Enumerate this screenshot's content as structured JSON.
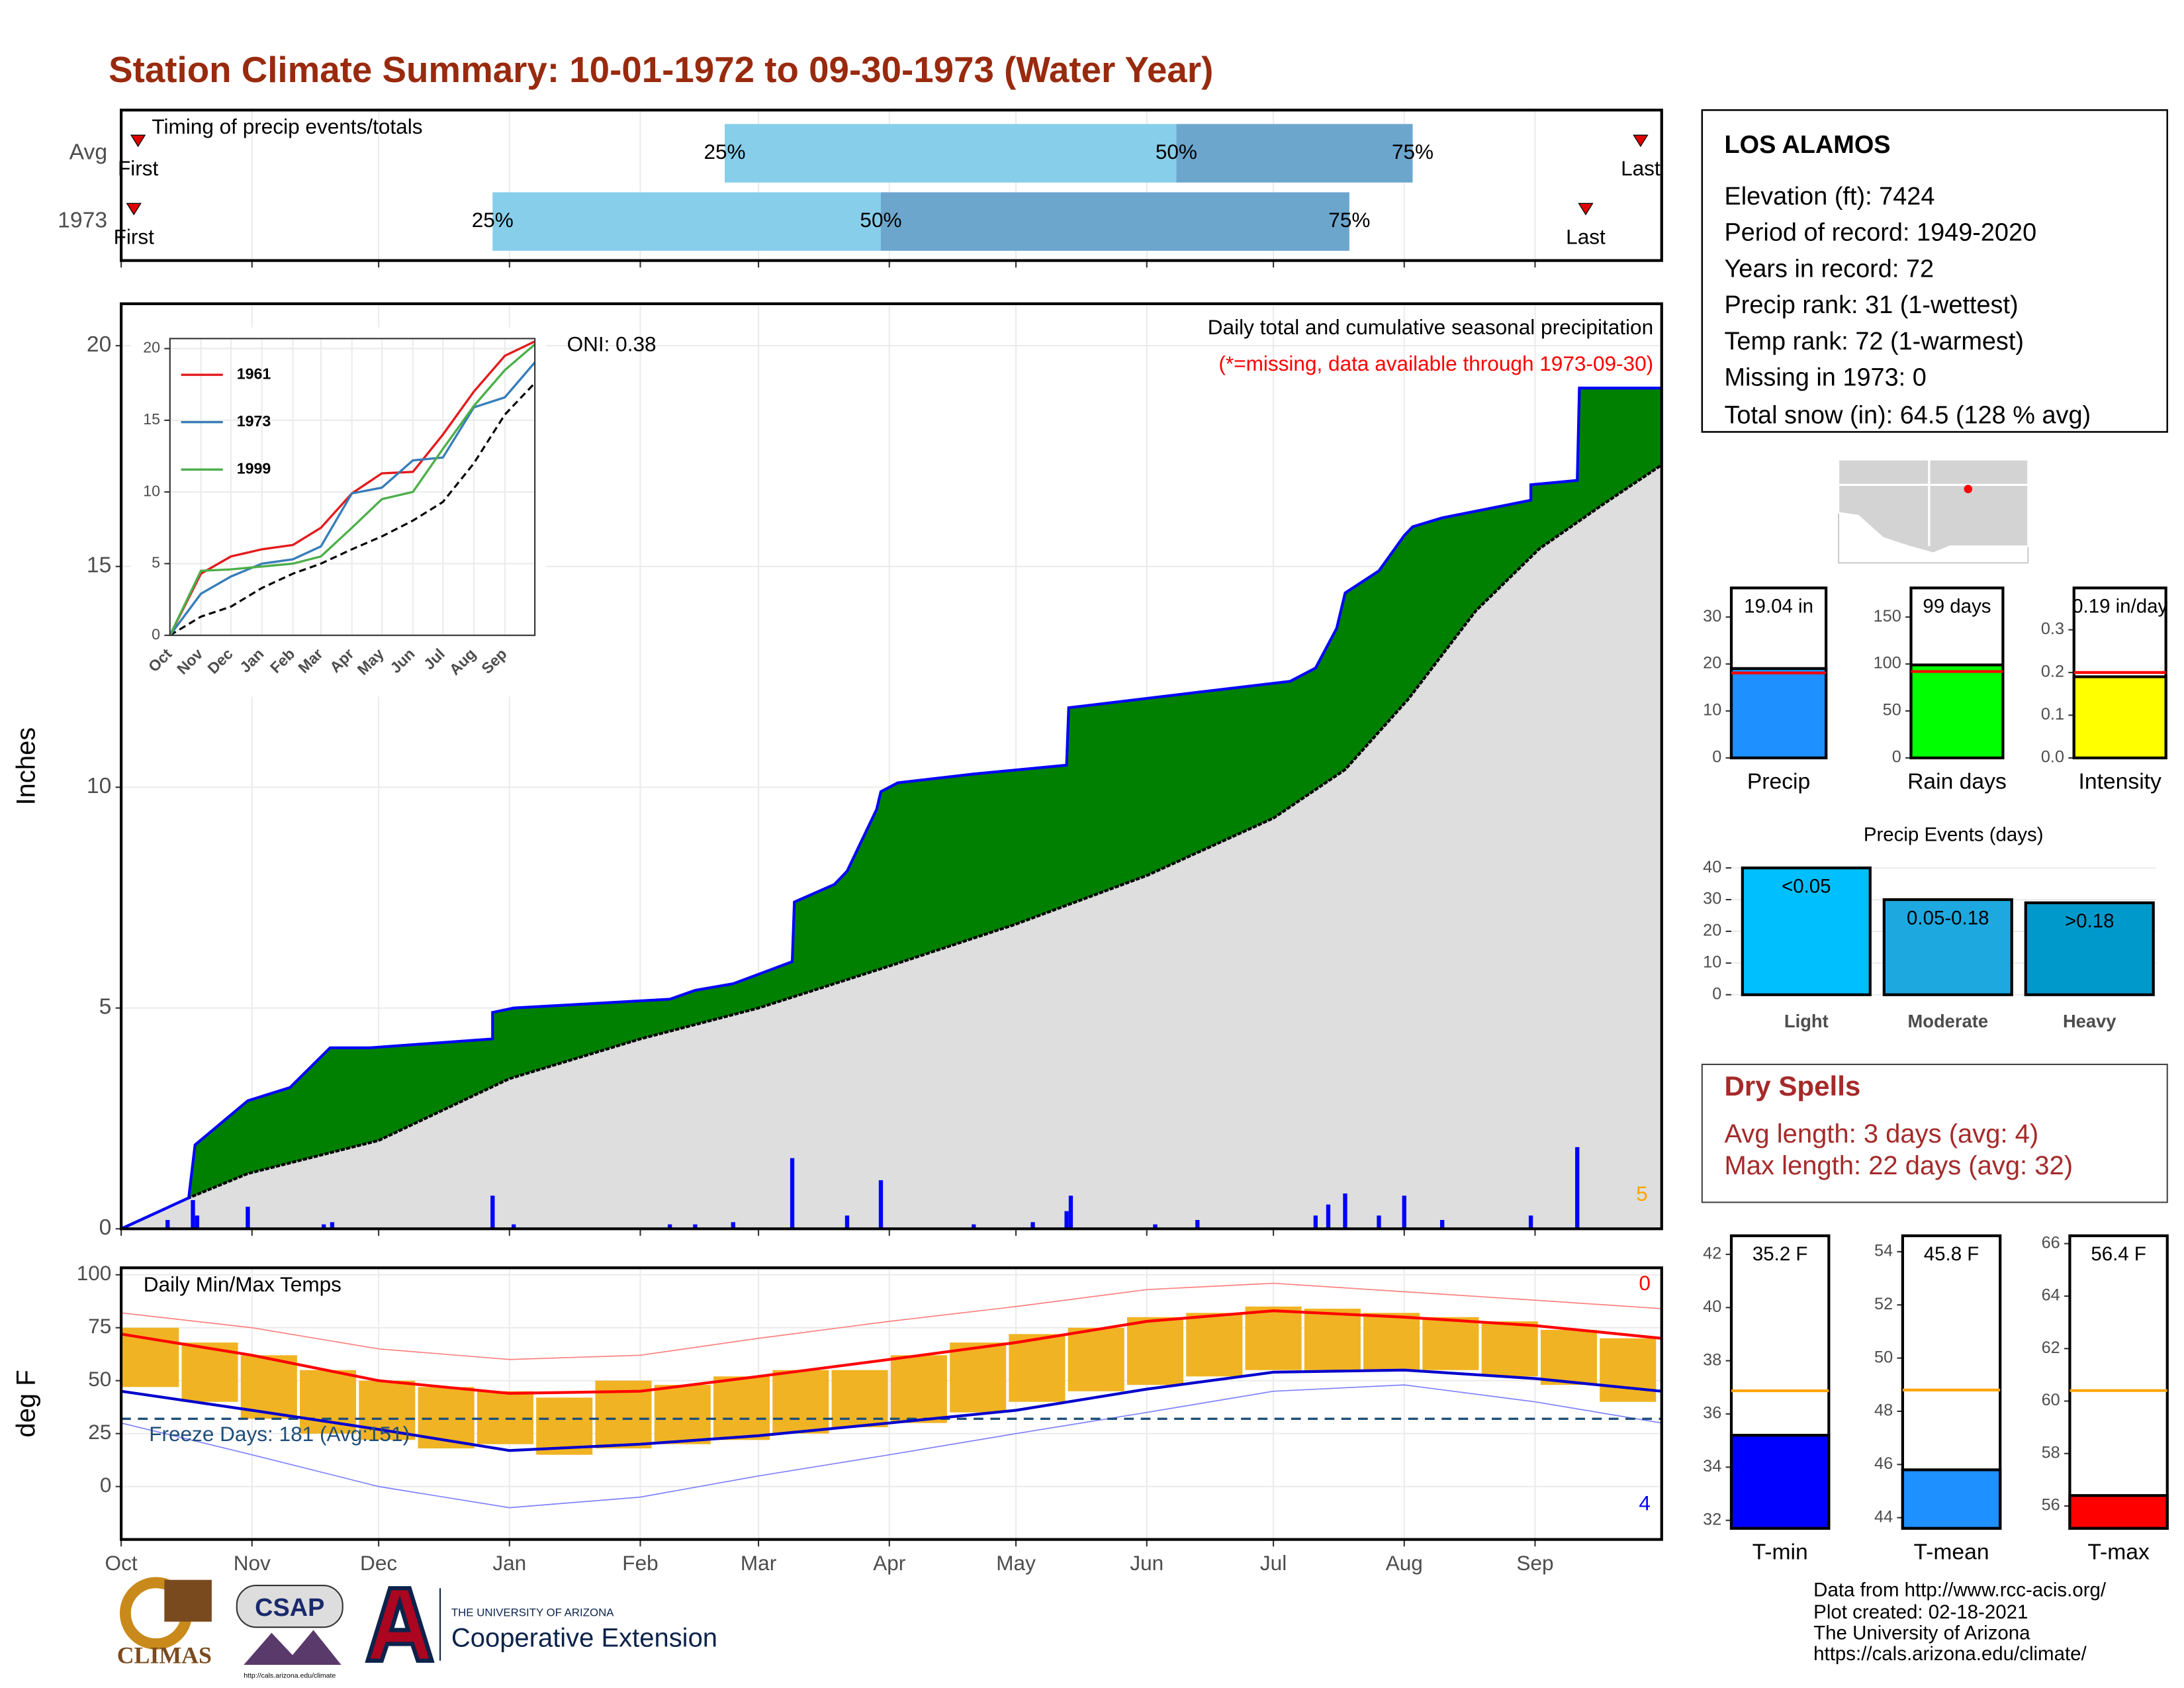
{
  "title": "Station Climate Summary: 10-01-1972 to 09-30-1973 (Water Year)",
  "chart_data": [
    {
      "type": "timing",
      "title": "Timing of precip events/totals",
      "xlim": [
        0,
        365
      ],
      "xticks": [
        0,
        31,
        61,
        92,
        123,
        151,
        182,
        212,
        243,
        273,
        304,
        335
      ],
      "labels": [
        "First",
        "25%",
        "50%",
        "75%",
        "Last"
      ],
      "colors": [
        "#87ceeb",
        "#6ca6cd"
      ],
      "marker_color": "#e00000",
      "series": [
        {
          "name": "Avg",
          "values": [
            4,
            143,
            250,
            306,
            360
          ]
        },
        {
          "name": "1973",
          "values": [
            3,
            88,
            180,
            291,
            347
          ]
        }
      ]
    },
    {
      "type": "cumulative",
      "title": "Daily total and cumulative seasonal precipitation",
      "subtitle": "(*=missing, data available through 1973-09-30)",
      "ylabel": "Inches",
      "annotations": [
        {
          "text": "ONI: 0.38",
          "color": "#000000"
        },
        {
          "text": "5",
          "color": "#ffa500"
        }
      ],
      "xlim": [
        0,
        365
      ],
      "xticks": [
        0,
        31,
        61,
        92,
        123,
        151,
        182,
        212,
        243,
        273,
        304,
        335
      ],
      "ylim": [
        0,
        20.95
      ],
      "yticks": [
        0,
        5,
        10,
        15,
        20
      ],
      "grid": true,
      "observed": {
        "fill": "#008000",
        "color": "#0000ff",
        "x": [
          0,
          16,
          17.5,
          20,
          30,
          40,
          49.5,
          59,
          88,
          88,
          93,
          130,
          136,
          145,
          159,
          159.5,
          169,
          172,
          179,
          180,
          184,
          202,
          224,
          224.5,
          255,
          277,
          283,
          288,
          290,
          298,
          304,
          306,
          313,
          334,
          334,
          345,
          345.5,
          365
        ],
        "values": [
          0,
          0.7,
          1.9,
          2.1,
          2.9,
          3.2,
          4.1,
          4.1,
          4.3,
          4.9,
          5.0,
          5.2,
          5.4,
          5.55,
          6.05,
          7.4,
          7.8,
          8.1,
          9.5,
          9.9,
          10.1,
          10.3,
          10.5,
          11.8,
          12.15,
          12.4,
          12.7,
          13.6,
          14.4,
          14.9,
          15.7,
          15.9,
          16.1,
          16.5,
          16.85,
          16.95,
          19.04,
          19.04
        ]
      },
      "average": {
        "fill": "#dedede",
        "color": "#000000",
        "x": [
          0,
          16,
          30,
          61,
          92,
          123,
          151,
          182,
          212,
          243,
          273,
          290,
          305,
          321,
          336,
          351,
          365
        ],
        "values": [
          0,
          0.7,
          1.25,
          2.0,
          3.4,
          4.3,
          5.0,
          5.95,
          6.9,
          8.0,
          9.3,
          10.4,
          12.0,
          14.0,
          15.4,
          16.4,
          17.3
        ]
      },
      "daily": {
        "color": "#0000ff",
        "x": [
          11,
          17,
          18,
          30,
          48,
          50,
          88,
          93,
          130,
          136,
          145,
          159,
          172,
          180,
          202,
          216,
          224,
          225,
          245,
          255,
          283,
          286,
          290,
          298,
          304,
          313,
          334,
          345
        ],
        "values": [
          0.2,
          0.65,
          0.3,
          0.5,
          0.1,
          0.15,
          0.75,
          0.1,
          0.1,
          0.1,
          0.15,
          1.6,
          0.3,
          1.1,
          0.1,
          0.15,
          0.4,
          0.75,
          0.1,
          0.2,
          0.3,
          0.55,
          0.8,
          0.3,
          0.75,
          0.2,
          0.3,
          1.85
        ]
      }
    },
    {
      "type": "inset",
      "xlim": [
        0,
        365
      ],
      "ylim": [
        0,
        20.7
      ],
      "yticks": [
        0,
        5,
        10,
        15,
        20
      ],
      "xticks": [
        {
          "value": 0,
          "label": "Oct"
        },
        {
          "value": 31,
          "label": "Nov"
        },
        {
          "value": 61,
          "label": "Dec"
        },
        {
          "value": 92,
          "label": "Jan"
        },
        {
          "value": 123,
          "label": "Feb"
        },
        {
          "value": 151,
          "label": "Mar"
        },
        {
          "value": 182,
          "label": "Apr"
        },
        {
          "value": 212,
          "label": "May"
        },
        {
          "value": 243,
          "label": "Jun"
        },
        {
          "value": 273,
          "label": "Jul"
        },
        {
          "value": 304,
          "label": "Aug"
        },
        {
          "value": 335,
          "label": "Sep"
        }
      ],
      "x": [
        0,
        31,
        61,
        92,
        123,
        151,
        182,
        212,
        243,
        273,
        304,
        335,
        365
      ],
      "average": {
        "color": "#000000",
        "values": [
          0,
          1.3,
          2.0,
          3.3,
          4.3,
          5.0,
          6.0,
          6.9,
          8.0,
          9.3,
          12.0,
          15.4,
          17.6
        ]
      },
      "series": [
        {
          "name": "1961",
          "color": "#e41a1c",
          "values": [
            0,
            4.3,
            5.5,
            6.0,
            6.3,
            7.5,
            9.9,
            11.3,
            11.4,
            14.0,
            17.0,
            19.5,
            20.5
          ]
        },
        {
          "name": "1973",
          "color": "#377eb8",
          "values": [
            0,
            2.9,
            4.1,
            5.0,
            5.3,
            6.2,
            9.9,
            10.3,
            12.2,
            12.4,
            15.9,
            16.6,
            19.04
          ]
        },
        {
          "name": "1999",
          "color": "#4daf4a",
          "values": [
            0,
            4.5,
            4.6,
            4.8,
            5.0,
            5.5,
            7.5,
            9.5,
            10.0,
            13.0,
            16.0,
            18.5,
            20.3
          ]
        }
      ]
    },
    {
      "type": "temperature",
      "title": "Daily Min/Max Temps",
      "ylabel": "deg F",
      "freeze": 32,
      "freeze_label": "Freeze Days: 181 (Avg:151)",
      "annotations": [
        {
          "text": "0",
          "color": "#ff0000"
        },
        {
          "text": "4",
          "color": "#0000ff"
        }
      ],
      "xlim": [
        0,
        365
      ],
      "ylim": [
        -25,
        103.3
      ],
      "yticks": [
        0,
        25,
        50,
        75,
        100
      ],
      "grid": true,
      "xticks": [
        {
          "value": 0,
          "label": "Oct"
        },
        {
          "value": 31,
          "label": "Nov"
        },
        {
          "value": 61,
          "label": "Dec"
        },
        {
          "value": 92,
          "label": "Jan"
        },
        {
          "value": 123,
          "label": "Feb"
        },
        {
          "value": 151,
          "label": "Mar"
        },
        {
          "value": 182,
          "label": "Apr"
        },
        {
          "value": 212,
          "label": "May"
        },
        {
          "value": 243,
          "label": "Jun"
        },
        {
          "value": 273,
          "label": "Jul"
        },
        {
          "value": 304,
          "label": "Aug"
        },
        {
          "value": 335,
          "label": "Sep"
        }
      ],
      "daily": {
        "color": "#f0b323",
        "x": [
          0,
          14,
          28,
          42,
          56,
          70,
          84,
          98,
          112,
          126,
          140,
          154,
          168,
          182,
          196,
          210,
          224,
          238,
          252,
          266,
          280,
          294,
          308,
          322,
          336,
          350
        ],
        "low": [
          47,
          40,
          32,
          25,
          22,
          18,
          20,
          15,
          18,
          20,
          22,
          25,
          28,
          30,
          35,
          40,
          45,
          48,
          52,
          55,
          55,
          55,
          55,
          52,
          48,
          40
        ],
        "high": [
          75,
          68,
          62,
          55,
          50,
          47,
          45,
          42,
          50,
          48,
          52,
          55,
          55,
          62,
          68,
          72,
          75,
          80,
          82,
          85,
          84,
          82,
          80,
          78,
          74,
          70
        ]
      },
      "x": [
        0,
        31,
        61,
        92,
        123,
        151,
        182,
        212,
        243,
        273,
        304,
        335,
        365
      ],
      "series": [
        {
          "color": "#ff8080",
          "width": 0.8,
          "values": [
            82,
            75,
            65,
            60,
            62,
            70,
            78,
            85,
            93,
            96,
            92,
            88,
            84
          ]
        },
        {
          "color": "#8080ff",
          "width": 0.8,
          "values": [
            30,
            15,
            0,
            -10,
            -5,
            5,
            15,
            25,
            35,
            45,
            48,
            40,
            30
          ]
        },
        {
          "color": "#ff0000",
          "width": 2,
          "values": [
            72,
            62,
            50,
            44,
            45,
            52,
            60,
            68,
            78,
            83,
            80,
            76,
            70
          ]
        },
        {
          "color": "#0000cd",
          "width": 2,
          "values": [
            45,
            36,
            27,
            17,
            20,
            24,
            30,
            36,
            46,
            54,
            55,
            51,
            45
          ]
        }
      ]
    },
    {
      "type": "summary",
      "categories": [
        "Precip"
      ],
      "values": [
        19.04
      ],
      "value_labels": [
        "19.04 in"
      ],
      "reference": 18.1,
      "color": "#1e90ff",
      "reference_color": "#ff0000",
      "ylim": [
        0,
        36.2
      ],
      "yticks": [
        0,
        10,
        20,
        30
      ]
    },
    {
      "type": "summary",
      "categories": [
        "Rain days"
      ],
      "values": [
        99
      ],
      "value_labels": [
        "99 days"
      ],
      "reference": 92,
      "color": "#00ff00",
      "reference_color": "#ff0000",
      "ylim": [
        0,
        181
      ],
      "yticks": [
        0,
        50,
        100,
        150
      ]
    },
    {
      "type": "summary",
      "categories": [
        "Intensity"
      ],
      "values": [
        0.19
      ],
      "value_labels": [
        "0.19 in/day"
      ],
      "reference": 0.2,
      "color": "#ffff00",
      "reference_color": "#ff0000",
      "ylim": [
        0,
        0.398
      ],
      "yticks": [
        {
          "value": 0,
          "label": "0.0"
        },
        0.1,
        0.2,
        0.3
      ]
    },
    {
      "type": "events",
      "title": "Precip Events (days)",
      "categories": [
        "Light",
        "Moderate",
        "Heavy"
      ],
      "values": [
        40,
        30,
        29
      ],
      "thresholds": [
        "<0.05",
        "0.05-0.18",
        ">0.18"
      ],
      "colors": [
        "#00bfff",
        "#1ea8e0",
        "#0099cc"
      ],
      "ylim": [
        0,
        43.5
      ],
      "yticks": [
        0,
        10,
        20,
        30,
        40
      ],
      "grid": true
    },
    {
      "type": "summary",
      "categories": [
        "T-min"
      ],
      "values": [
        35.2
      ],
      "value_labels": [
        "35.2 F"
      ],
      "reference": 36.87,
      "color": "#0000ff",
      "reference_color": "#ffa500",
      "ylim": [
        31.7,
        42.7
      ],
      "yticks": [
        32,
        34,
        36,
        38,
        40,
        42
      ]
    },
    {
      "type": "summary",
      "categories": [
        "T-mean"
      ],
      "values": [
        45.8
      ],
      "value_labels": [
        "45.8 F"
      ],
      "reference": 48.8,
      "color": "#1e90ff",
      "reference_color": "#ffa500",
      "ylim": [
        43.6,
        54.6
      ],
      "yticks": [
        44,
        46,
        48,
        50,
        52,
        54
      ]
    },
    {
      "type": "summary",
      "categories": [
        "T-max"
      ],
      "values": [
        56.4
      ],
      "value_labels": [
        "56.4 F"
      ],
      "reference": 60.4,
      "color": "#ff0000",
      "reference_color": "#ffa500",
      "ylim": [
        55.15,
        66.3
      ],
      "yticks": [
        56,
        58,
        60,
        62,
        64,
        66
      ]
    }
  ],
  "station": {
    "name": "LOS ALAMOS",
    "lines": [
      "Elevation (ft): 7424",
      "Period of record: 1949-2020",
      "Years in record: 72",
      "Precip rank: 31 (1-wettest)",
      "Temp rank: 72 (1-warmest)",
      "Missing in 1973: 0",
      "Total snow (in): 64.5 (128 % avg)"
    ]
  },
  "dry_spells": {
    "title": "Dry Spells",
    "lines": [
      "Avg length: 3 days (avg: 4)",
      "Max length: 22 days (avg: 32)"
    ]
  },
  "footer": {
    "lines": [
      "Data from http://www.rcc-acis.org/",
      "Plot created: 02-18-2021",
      "The University of Arizona",
      "https://cals.arizona.edu/climate/"
    ]
  },
  "logos": {
    "climas": "CLIMAS",
    "csap": "CSAP",
    "csap_url": "http://cals.arizona.edu/climate",
    "university": "THE UNIVERSITY OF ARIZONA",
    "extension": "Cooperative Extension"
  }
}
